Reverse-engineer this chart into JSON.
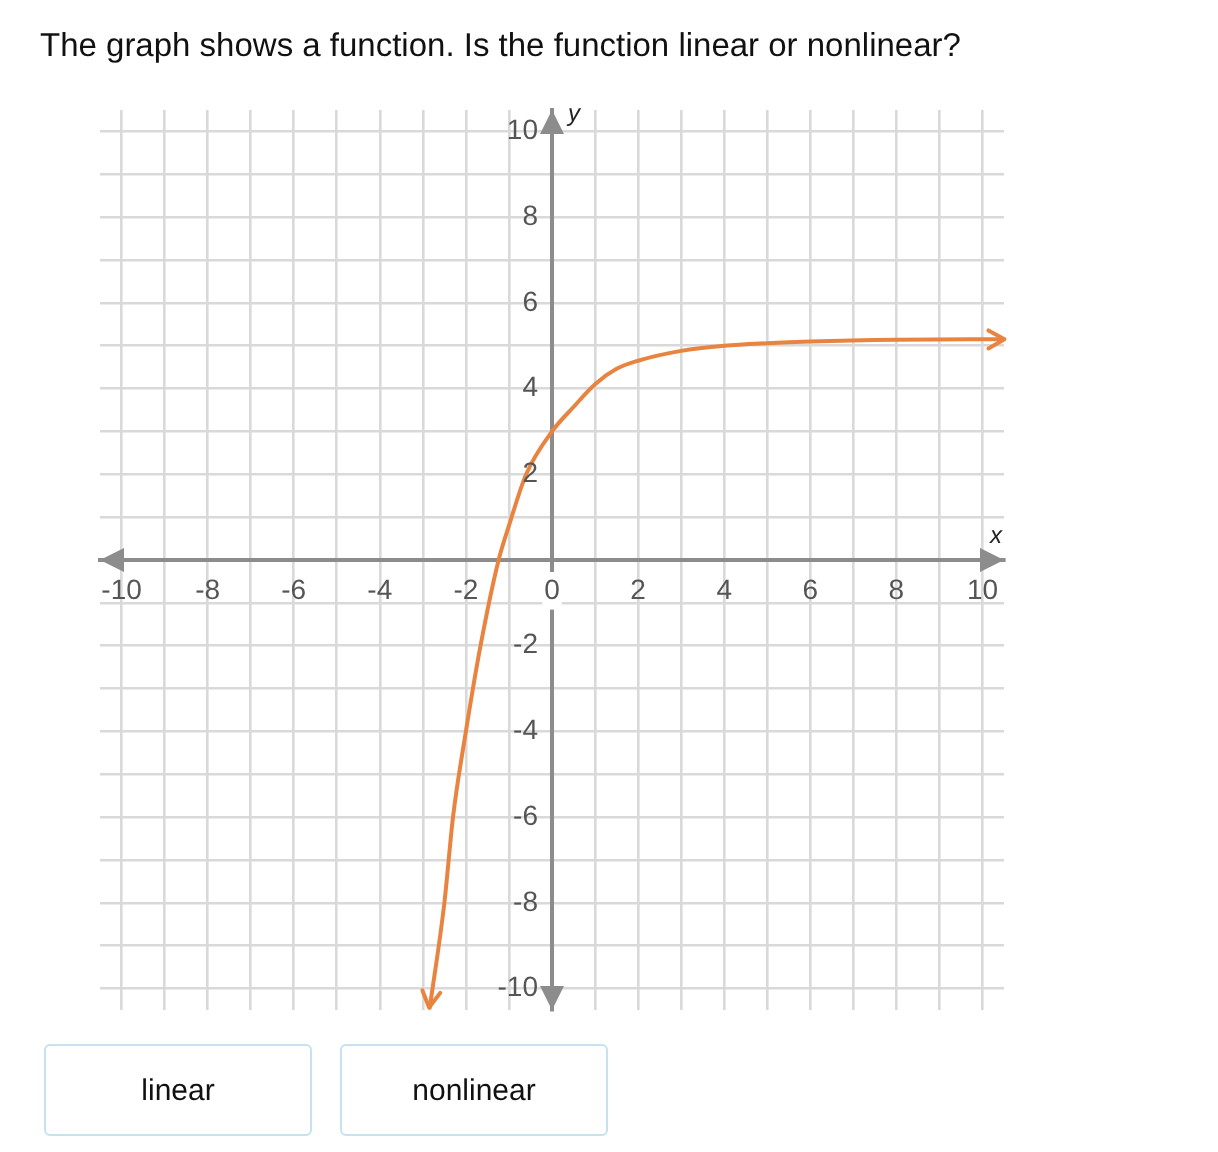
{
  "chart_data": {
    "type": "line",
    "title": "The graph shows a function. Is the function linear or nonlinear?",
    "xlabel": "x",
    "ylabel": "y",
    "annotations": [
      "linear",
      "nonlinear"
    ],
    "x": [
      -2.84,
      -2.5,
      -2.3,
      -2,
      -1.66,
      -1.24,
      -1,
      -0.6,
      0,
      0.5,
      1,
      1.5,
      2,
      3,
      4,
      5,
      6,
      8,
      10.5
    ],
    "values": [
      -10.45,
      -8,
      -6,
      -4,
      -2,
      0,
      0.8,
      2,
      3,
      3.57,
      4.1,
      4.46,
      4.65,
      4.88,
      5,
      5.06,
      5.1,
      5.14,
      5.15
    ],
    "color": "#e8843f",
    "marker": "none",
    "grid": true,
    "xlim": [
      -10.5,
      10.5
    ],
    "ylim": [
      -10.5,
      10.5
    ],
    "xticks": [
      -10,
      {
        "value": -9,
        "label": null
      },
      -8,
      {
        "value": -7,
        "label": null
      },
      -6,
      {
        "value": -5,
        "label": null
      },
      -4,
      {
        "value": -3,
        "label": null
      },
      -2,
      {
        "value": -1,
        "label": null
      },
      0,
      {
        "value": 1,
        "label": null
      },
      2,
      {
        "value": 3,
        "label": null
      },
      4,
      {
        "value": 5,
        "label": null
      },
      6,
      {
        "value": 7,
        "label": null
      },
      8,
      {
        "value": 9,
        "label": null
      },
      10
    ],
    "yticks": [
      -10,
      {
        "value": -9,
        "label": null
      },
      -8,
      {
        "value": -7,
        "label": null
      },
      -6,
      {
        "value": -5,
        "label": null
      },
      -4,
      {
        "value": -3,
        "label": null
      },
      -2,
      {
        "value": -1,
        "label": null
      },
      {
        "value": 0,
        "label": null
      },
      {
        "value": 1,
        "label": null
      },
      2,
      {
        "value": 3,
        "label": null
      },
      4,
      {
        "value": 5,
        "label": null
      },
      6,
      {
        "value": 7,
        "label": null
      },
      8,
      {
        "value": 9,
        "label": null
      },
      10
    ]
  }
}
